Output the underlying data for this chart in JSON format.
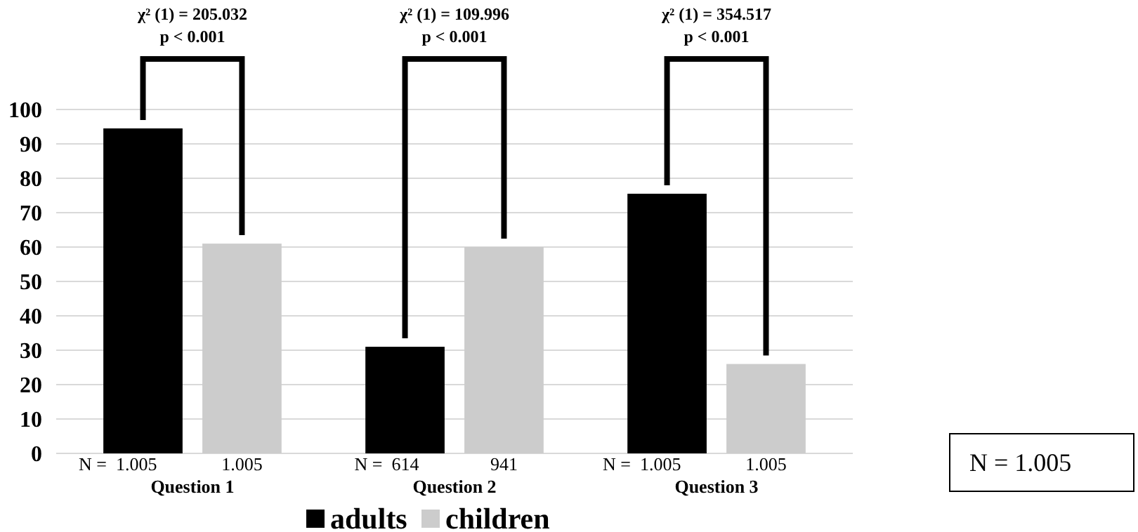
{
  "chart_data": {
    "type": "bar",
    "categories": [
      "Question 1",
      "Question 2",
      "Question 3"
    ],
    "series": [
      {
        "name": "adults",
        "color": "#000000",
        "values": [
          94.5,
          31,
          75.5
        ]
      },
      {
        "name": "children",
        "color": "#cccccc",
        "values": [
          61,
          60,
          26
        ]
      }
    ],
    "ylim": [
      0,
      100
    ],
    "yticks": [
      0,
      10,
      20,
      30,
      40,
      50,
      60,
      70,
      80,
      90,
      100
    ],
    "grid": "y",
    "legend": "bottom",
    "annotations": [
      "χ² (1) = 205.032\np < 0.001",
      "χ² (1) = 109.996\np < 0.001",
      "χ² (1) = 354.517\np < 0.001",
      "N =  1.005",
      "1.005",
      "N =  614",
      "941",
      "N =  1.005",
      "1.005",
      "N = 1.005"
    ]
  }
}
